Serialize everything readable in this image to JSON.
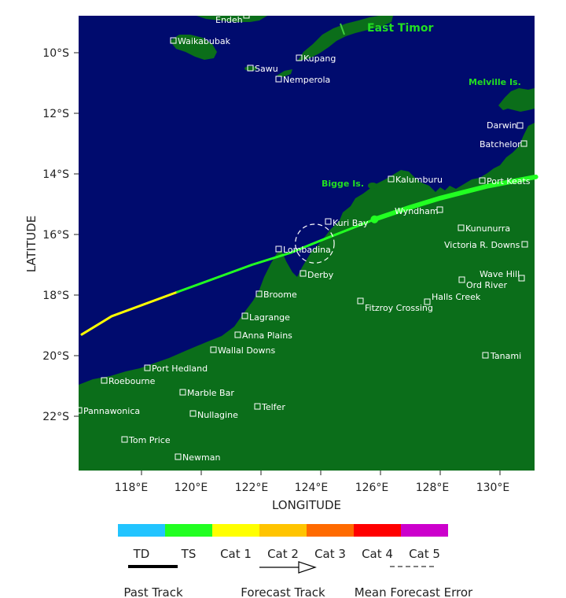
{
  "map": {
    "x_axis_label": "LONGITUDE",
    "y_axis_label": "LATITUDE",
    "lon_ticks": [
      "118°E",
      "120°E",
      "122°E",
      "124°E",
      "126°E",
      "128°E",
      "130°E"
    ],
    "lat_ticks": [
      "10°S",
      "12°S",
      "14°S",
      "16°S",
      "18°S",
      "20°S",
      "22°S"
    ],
    "region_labels": {
      "east_timor": "East Timor",
      "melville": "Melville Is.",
      "bigge": "Bigge Is."
    },
    "towns": {
      "ende": "Endeh",
      "waikabubak": "Waikabubak",
      "sawu": "Sawu",
      "kupang": "Kupang",
      "nemperola": "Nemperola",
      "darwin": "Darwin",
      "batchelor": "Batchelor",
      "kalumburu": "Kalumburu",
      "port_keats": "Port Keats",
      "wyndham": "Wyndham",
      "kuri_bay": "Kuri Bay",
      "kununurra": "Kununurra",
      "lombadina": "Lombadina",
      "victoria_river_downs": "Victoria R. Downs",
      "derby": "Derby",
      "wave_hill": "Wave Hill",
      "ord_river": "Ord River",
      "broome": "Broome",
      "halls_creek": "Halls Creek",
      "fitzroy_crossing": "Fitzroy Crossing",
      "lagrange": "Lagrange",
      "anna_plains": "Anna Plains",
      "wallal_downs": "Wallal Downs",
      "tanami": "Tanami",
      "port_hedland": "Port Hedland",
      "roebourne": "Roebourne",
      "marble_bar": "Marble Bar",
      "pannawonica": "Pannawonica",
      "telfer": "Telfer",
      "nullagine": "Nullagine",
      "tom_price": "Tom Price",
      "newman": "Newman"
    }
  },
  "track": {
    "past_cat1": [
      [
        116.0,
        19.3
      ],
      [
        117.0,
        18.7
      ],
      [
        119.2,
        17.9
      ]
    ],
    "past_ts": [
      [
        119.2,
        17.9
      ],
      [
        121.7,
        17.0
      ],
      [
        123.0,
        16.6
      ],
      [
        124.0,
        16.2
      ],
      [
        125.8,
        15.5
      ]
    ],
    "forecast_ts": [
      [
        125.8,
        15.5
      ],
      [
        127.0,
        15.1
      ],
      [
        128.0,
        14.8
      ],
      [
        129.6,
        14.4
      ],
      [
        131.2,
        14.1
      ]
    ],
    "current_position": [
      125.8,
      15.5
    ],
    "error_circle": {
      "center": [
        123.8,
        16.3
      ],
      "radius_deg": 0.65
    }
  },
  "legend": {
    "categories": [
      {
        "label": "TD",
        "color": "#22c4ff"
      },
      {
        "label": "TS",
        "color": "#22ff22"
      },
      {
        "label": "Cat 1",
        "color": "#ffff00"
      },
      {
        "label": "Cat 2",
        "color": "#ffc400"
      },
      {
        "label": "Cat 3",
        "color": "#ff6a00"
      },
      {
        "label": "Cat 4",
        "color": "#ff0000"
      },
      {
        "label": "Cat 5",
        "color": "#cc00cc"
      }
    ],
    "past_track_label": "Past Track",
    "forecast_track_label": "Forecast Track",
    "mean_error_label": "Mean Forecast Error"
  },
  "colors": {
    "ocean": "#000b6e",
    "land": "#0b6e1a"
  }
}
